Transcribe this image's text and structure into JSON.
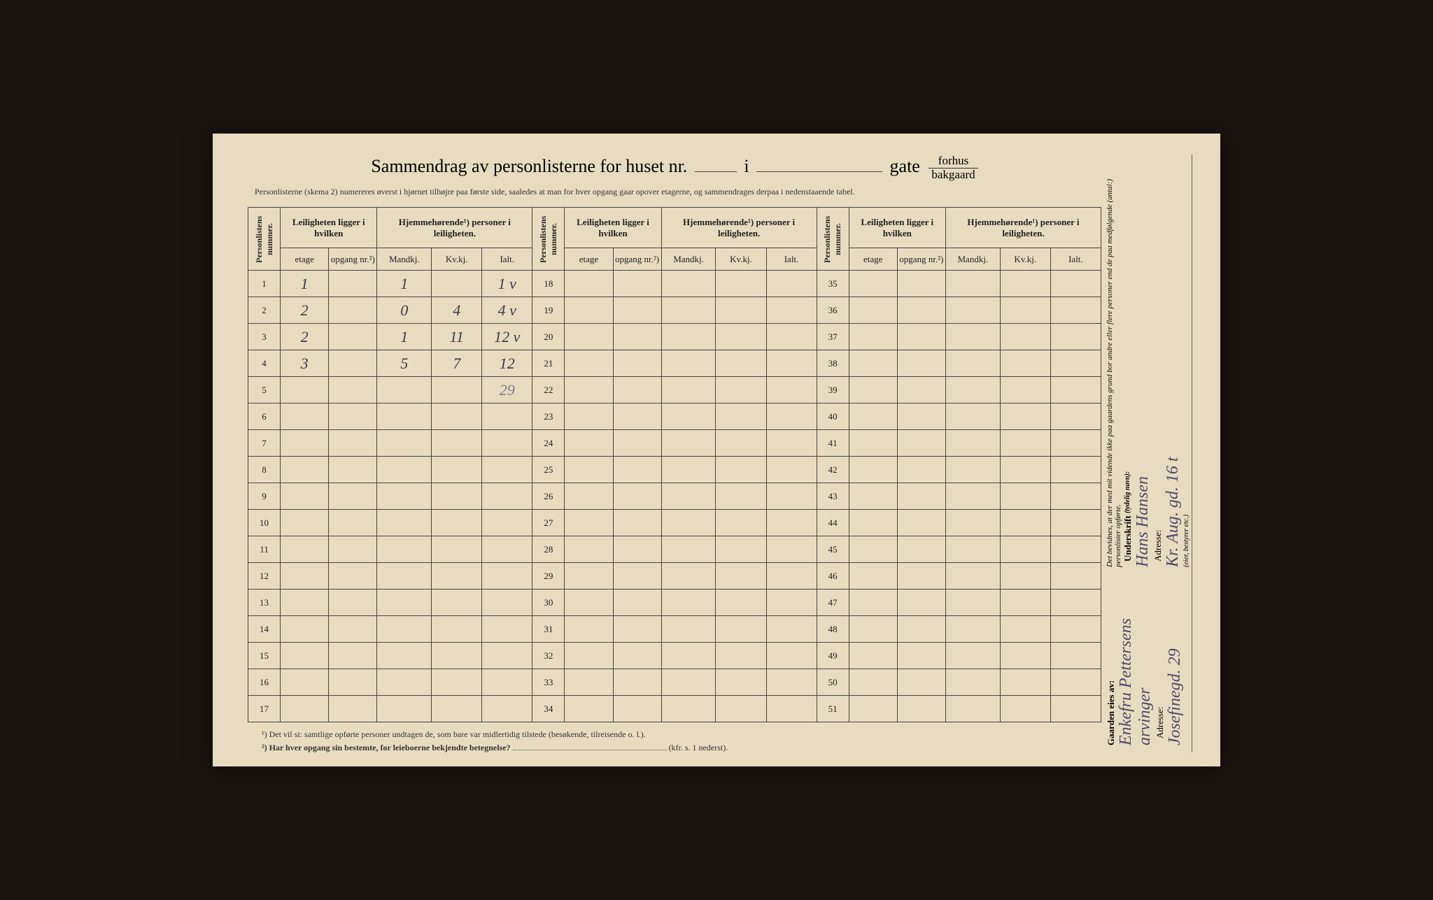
{
  "title": {
    "prefix": "Sammendrag av personlisterne for huset nr.",
    "mid": "i",
    "gate": "gate",
    "stack_top": "forhus",
    "stack_bot": "bakgaard"
  },
  "subtitle": "Personlisterne (skema 2) numereres øverst i hjørnet tilhøjre paa første side, saaledes at man for hver opgang gaar opover etagerne, og sammendrages derpaa i nedenstaaende tabel.",
  "headers": {
    "personlistens": "Personlistens nummer.",
    "leiligheten": "Leiligheten ligger i hvilken",
    "hjemme": "Hjemmehørende¹) personer i leiligheten.",
    "etage": "etage",
    "opgang": "opgang nr.²)",
    "mandkj": "Mandkj.",
    "kvkj": "Kv.kj.",
    "ialt": "Ialt."
  },
  "row_numbers_a": [
    1,
    2,
    3,
    4,
    5,
    6,
    7,
    8,
    9,
    10,
    11,
    12,
    13,
    14,
    15,
    16,
    17
  ],
  "row_numbers_b": [
    18,
    19,
    20,
    21,
    22,
    23,
    24,
    25,
    26,
    27,
    28,
    29,
    30,
    31,
    32,
    33,
    34
  ],
  "row_numbers_c": [
    35,
    36,
    37,
    38,
    39,
    40,
    41,
    42,
    43,
    44,
    45,
    46,
    47,
    48,
    49,
    50,
    51
  ],
  "entries": [
    {
      "row": 1,
      "etage": "1",
      "mandkj": "1",
      "kvkj": "",
      "ialt": "1 v"
    },
    {
      "row": 2,
      "etage": "2",
      "mandkj": "0",
      "kvkj": "4",
      "ialt": "4 v"
    },
    {
      "row": 3,
      "etage": "2",
      "mandkj": "1",
      "kvkj": "11",
      "ialt": "12 v"
    },
    {
      "row": 4,
      "etage": "3",
      "mandkj": "5",
      "kvkj": "7",
      "ialt": "12"
    }
  ],
  "sum_row": {
    "row": 5,
    "ialt": "29"
  },
  "footnotes": {
    "f1": "¹) Det vil si: samtlige opførte personer undtagen de, som bare var midlertidig tilstede (besøkende, tilreisende o. l.).",
    "f2_label": "²) Har hver opgang sin bestemte, for leieboerne bekjendte betegnelse?",
    "f2_ref": "(kfr. s. 1 nederst)."
  },
  "sidebar": {
    "gaarden_label": "Gaarden eies av:",
    "gaarden_value": "Enkefru Pettersens arvinger",
    "adresse1_label": "Adresse:",
    "adresse1_value": "Josefinegd. 29",
    "bevidnes": "Det bevidnes, at der med mit vidende ikke paa gaardens grund bor andre eller flere personer end de paa medfølgende (antal:) personlister opførte.",
    "underskrift_label": "Underskrift",
    "underskrift_note": "(tydelig navn):",
    "underskrift_value": "Hans Hansen",
    "adresse2_label": "Adresse:",
    "adresse2_value": "Kr. Aug. gd. 16 t",
    "eier_note": "(eier, bestyrer etc.)"
  },
  "colors": {
    "paper": "#e8dcc0",
    "ink": "#222",
    "handwriting": "#3a3a4a",
    "background": "#1a1410"
  }
}
